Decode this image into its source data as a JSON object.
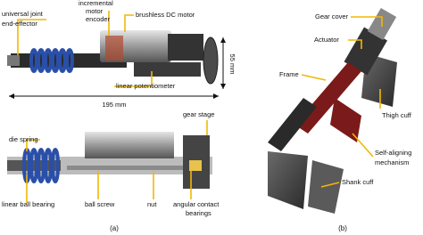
{
  "panel_a": {
    "universal_joint": [
      "universal joint",
      "end-effector"
    ],
    "encoder": [
      "incremental",
      "motor",
      "encoder"
    ],
    "motor": "brushless DC motor",
    "height": "55 mm",
    "potentiometer": "linear potentiometer",
    "length": "195 mm",
    "gear_stage": "gear stage",
    "die_spring": "die spring",
    "ball_bearing": "linear ball bearing",
    "ball_screw": "ball screw",
    "nut": "nut",
    "angular_bearings": [
      "angular contact",
      "bearings"
    ],
    "caption": "(a)"
  },
  "panel_b": {
    "gear_cover": "Gear cover",
    "actuator": "Actuator",
    "frame": "Frame",
    "thigh_cuff": "Thigh cuff",
    "self_aligning": [
      "Self-aligning",
      "mechanism"
    ],
    "shank_cuff": "Shank cuff",
    "caption": "(b)"
  }
}
